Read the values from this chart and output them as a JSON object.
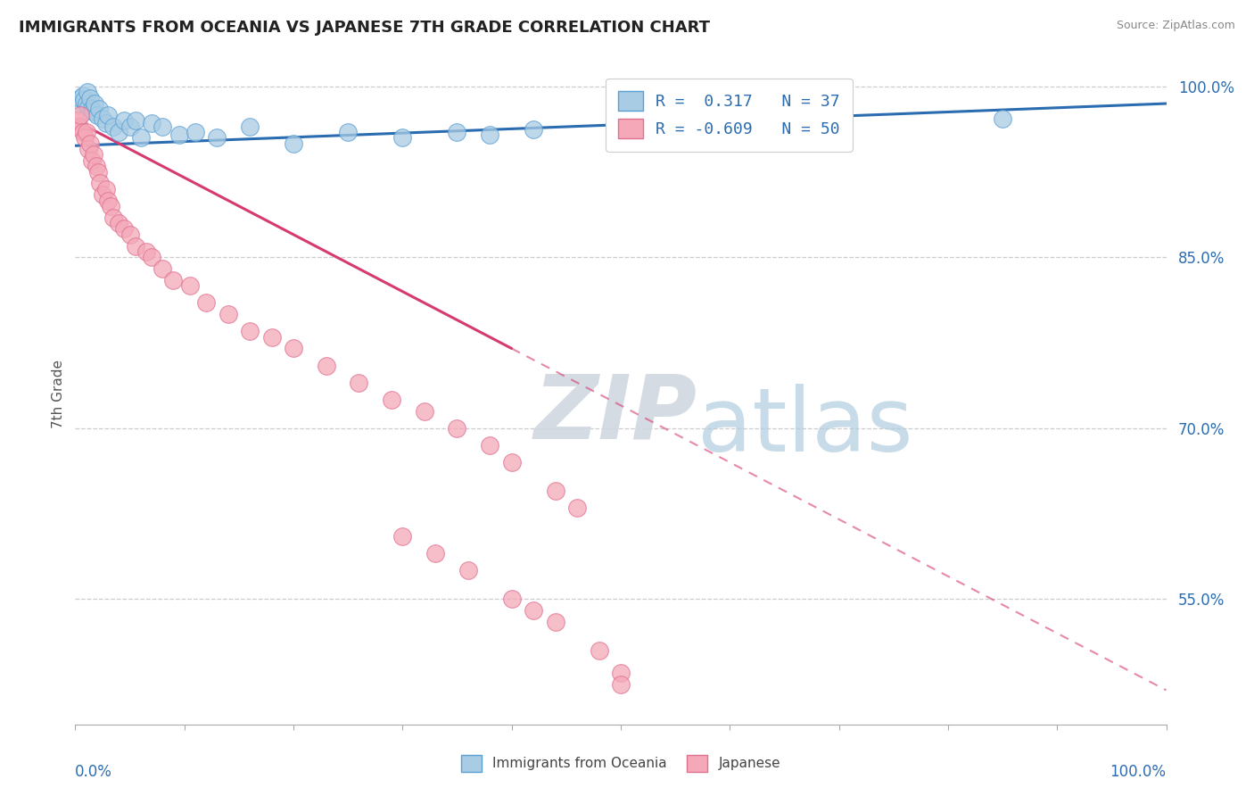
{
  "title": "IMMIGRANTS FROM OCEANIA VS JAPANESE 7TH GRADE CORRELATION CHART",
  "source_text": "Source: ZipAtlas.com",
  "ylabel": "7th Grade",
  "R_blue": 0.317,
  "N_blue": 37,
  "R_pink": -0.609,
  "N_pink": 50,
  "blue_color": "#a8cce4",
  "pink_color": "#f4a8b8",
  "blue_line_color": "#2b6cb0",
  "pink_line_color": "#d63b6e",
  "blue_edge_color": "#5a9fd4",
  "pink_edge_color": "#e07090",
  "xlim": [
    0,
    100
  ],
  "ylim": [
    44,
    102
  ],
  "yticks": [
    55.0,
    70.0,
    85.0,
    100.0
  ],
  "blue_trend_x0": 0,
  "blue_trend_y0": 94.8,
  "blue_trend_x1": 100,
  "blue_trend_y1": 98.5,
  "pink_trend_x0": 0,
  "pink_trend_y0": 97.0,
  "pink_trend_x1": 100,
  "pink_trend_y1": 47.0,
  "pink_solid_end_x": 40,
  "blue_points_x": [
    0.3,
    0.5,
    0.7,
    0.8,
    1.0,
    1.1,
    1.2,
    1.4,
    1.5,
    1.6,
    1.8,
    2.0,
    2.2,
    2.5,
    2.8,
    3.0,
    3.5,
    4.0,
    4.5,
    5.0,
    5.5,
    6.0,
    7.0,
    8.0,
    9.5,
    11.0,
    13.0,
    16.0,
    20.0,
    25.0,
    30.0,
    35.0,
    38.0,
    42.0,
    55.0,
    70.0,
    85.0
  ],
  "blue_points_y": [
    98.5,
    99.0,
    99.2,
    98.8,
    98.5,
    99.5,
    98.2,
    99.0,
    98.0,
    97.8,
    98.5,
    97.5,
    98.0,
    97.2,
    96.8,
    97.5,
    96.5,
    96.0,
    97.0,
    96.5,
    97.0,
    95.5,
    96.8,
    96.5,
    95.8,
    96.0,
    95.5,
    96.5,
    95.0,
    96.0,
    95.5,
    96.0,
    95.8,
    96.2,
    95.5,
    97.0,
    97.2
  ],
  "pink_points_x": [
    0.2,
    0.4,
    0.5,
    0.7,
    0.9,
    1.0,
    1.2,
    1.4,
    1.5,
    1.7,
    1.9,
    2.1,
    2.3,
    2.5,
    2.8,
    3.0,
    3.2,
    3.5,
    4.0,
    4.5,
    5.0,
    5.5,
    6.5,
    7.0,
    8.0,
    9.0,
    10.5,
    12.0,
    14.0,
    16.0,
    18.0,
    20.0,
    23.0,
    26.0,
    29.0,
    32.0,
    35.0,
    38.0,
    40.0,
    44.0,
    46.0,
    30.0,
    33.0,
    36.0,
    40.0,
    42.0,
    44.0,
    48.0,
    50.0,
    50.0
  ],
  "pink_points_y": [
    97.0,
    96.5,
    97.5,
    96.0,
    95.5,
    96.0,
    94.5,
    95.0,
    93.5,
    94.0,
    93.0,
    92.5,
    91.5,
    90.5,
    91.0,
    90.0,
    89.5,
    88.5,
    88.0,
    87.5,
    87.0,
    86.0,
    85.5,
    85.0,
    84.0,
    83.0,
    82.5,
    81.0,
    80.0,
    78.5,
    78.0,
    77.0,
    75.5,
    74.0,
    72.5,
    71.5,
    70.0,
    68.5,
    67.0,
    64.5,
    63.0,
    60.5,
    59.0,
    57.5,
    55.0,
    54.0,
    53.0,
    50.5,
    48.5,
    47.5
  ]
}
